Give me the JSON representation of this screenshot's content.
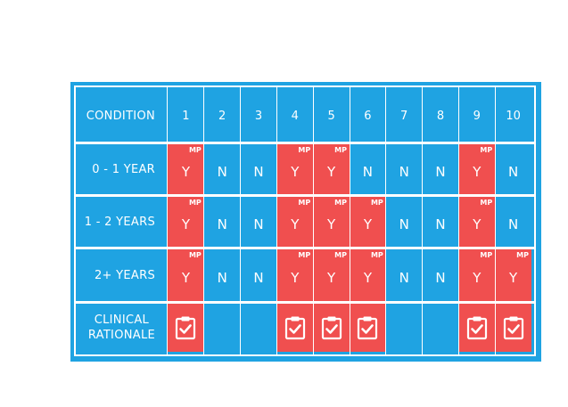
{
  "header": {
    "condition_label": "CONDITION",
    "columns": [
      "1",
      "2",
      "3",
      "4",
      "5",
      "6",
      "7",
      "8",
      "9",
      "10"
    ]
  },
  "rows": [
    {
      "label": "0 - 1 YEAR",
      "cells": [
        {
          "value": "Y",
          "badge": "MP",
          "highlight": true
        },
        {
          "value": "N",
          "badge": "",
          "highlight": false
        },
        {
          "value": "N",
          "badge": "",
          "highlight": false
        },
        {
          "value": "Y",
          "badge": "MP",
          "highlight": true
        },
        {
          "value": "Y",
          "badge": "MP",
          "highlight": true
        },
        {
          "value": "N",
          "badge": "",
          "highlight": false
        },
        {
          "value": "N",
          "badge": "",
          "highlight": false
        },
        {
          "value": "N",
          "badge": "",
          "highlight": false
        },
        {
          "value": "Y",
          "badge": "MP",
          "highlight": true
        },
        {
          "value": "N",
          "badge": "",
          "highlight": false
        }
      ]
    },
    {
      "label": "1 - 2 YEARS",
      "cells": [
        {
          "value": "Y",
          "badge": "MP",
          "highlight": true
        },
        {
          "value": "N",
          "badge": "",
          "highlight": false
        },
        {
          "value": "N",
          "badge": "",
          "highlight": false
        },
        {
          "value": "Y",
          "badge": "MP",
          "highlight": true
        },
        {
          "value": "Y",
          "badge": "MP",
          "highlight": true
        },
        {
          "value": "Y",
          "badge": "MP",
          "highlight": true
        },
        {
          "value": "N",
          "badge": "",
          "highlight": false
        },
        {
          "value": "N",
          "badge": "",
          "highlight": false
        },
        {
          "value": "Y",
          "badge": "MP",
          "highlight": true
        },
        {
          "value": "N",
          "badge": "",
          "highlight": false
        }
      ]
    },
    {
      "label": "2+ YEARS",
      "cells": [
        {
          "value": "Y",
          "badge": "MP",
          "highlight": true
        },
        {
          "value": "N",
          "badge": "",
          "highlight": false
        },
        {
          "value": "N",
          "badge": "",
          "highlight": false
        },
        {
          "value": "Y",
          "badge": "MP",
          "highlight": true
        },
        {
          "value": "Y",
          "badge": "MP",
          "highlight": true
        },
        {
          "value": "Y",
          "badge": "MP",
          "highlight": true
        },
        {
          "value": "N",
          "badge": "",
          "highlight": false
        },
        {
          "value": "N",
          "badge": "",
          "highlight": false
        },
        {
          "value": "Y",
          "badge": "MP",
          "highlight": true
        },
        {
          "value": "Y",
          "badge": "MP",
          "highlight": true
        }
      ]
    }
  ],
  "rationale": {
    "label_line1": "CLINICAL",
    "label_line2": "RATIONALE",
    "cells": [
      true,
      false,
      false,
      true,
      true,
      true,
      false,
      false,
      true,
      true
    ],
    "icon": "clipboard-check-icon"
  },
  "colors": {
    "blue": "#1fa3e2",
    "red": "#f04f4f",
    "white": "#ffffff"
  }
}
